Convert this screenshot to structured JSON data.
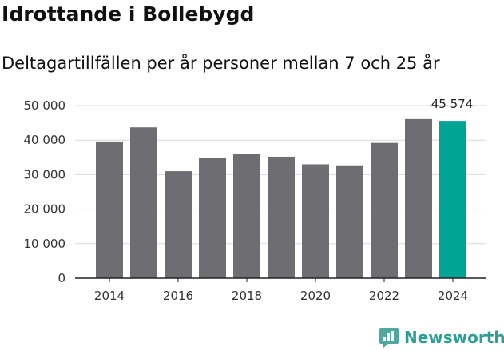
{
  "title": "Idrottande i Bollebygd",
  "subtitle": "Deltagartillfällen per år personer mellan 7 och 25 år",
  "brand": "Newsworthy",
  "colors": {
    "bar": "#6e6d72",
    "highlight": "#00a495",
    "grid": "#d9d9d9",
    "axis": "#222222",
    "brand": "#2e9e95"
  },
  "chart_data": {
    "type": "bar",
    "categories": [
      "2014",
      "2015",
      "2016",
      "2017",
      "2018",
      "2019",
      "2020",
      "2021",
      "2022",
      "2023",
      "2024"
    ],
    "values": [
      39600,
      43700,
      31000,
      34800,
      36100,
      35200,
      33000,
      32700,
      39200,
      46100,
      45574
    ],
    "highlight_index": 10,
    "value_labels": [
      {
        "index": 10,
        "text": "45 574"
      }
    ],
    "ylim": [
      0,
      50000
    ],
    "yticks": [
      0,
      10000,
      20000,
      30000,
      40000,
      50000
    ],
    "ytick_labels": [
      "0",
      "10 000",
      "20 000",
      "30 000",
      "40 000",
      "50 000"
    ],
    "xtick_categories": [
      "2014",
      "2016",
      "2018",
      "2020",
      "2022",
      "2024"
    ],
    "grid": true,
    "xlabel": "",
    "ylabel": ""
  }
}
